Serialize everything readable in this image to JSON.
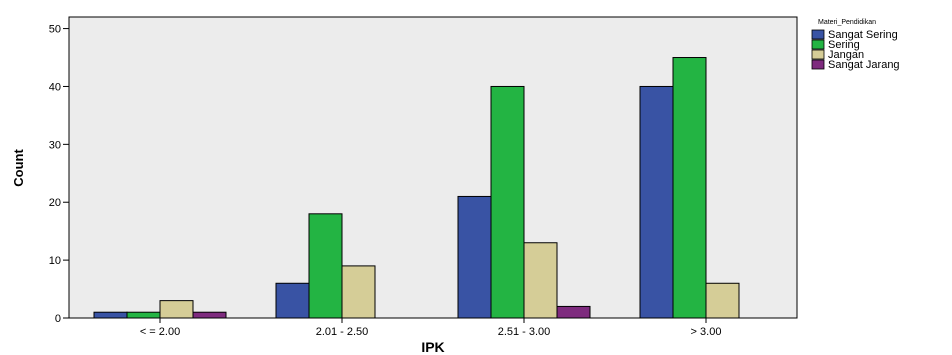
{
  "chart_data": {
    "type": "bar",
    "xlabel": "IPK",
    "ylabel": "Count",
    "ylim": [
      0,
      52
    ],
    "yticks": [
      0,
      10,
      20,
      30,
      40,
      50
    ],
    "categories": [
      "< = 2.00",
      "2.01  - 2.50",
      "2.51  - 3.00",
      "> 3.00"
    ],
    "legend_title": "Materi_Pendidikan",
    "legend_position": "top-right",
    "grid": false,
    "background": "#ececec",
    "series": [
      {
        "name": "Sangat Sering",
        "color": "#3953a4",
        "values": [
          1,
          6,
          21,
          40
        ]
      },
      {
        "name": "Sering",
        "color": "#23b443",
        "values": [
          1,
          18,
          40,
          45
        ]
      },
      {
        "name": "Jangan",
        "color": "#d5cd97",
        "values": [
          3,
          9,
          13,
          6
        ]
      },
      {
        "name": "Sangat Jarang",
        "color": "#7e2b7e",
        "values": [
          1,
          0,
          2,
          0
        ]
      }
    ]
  }
}
